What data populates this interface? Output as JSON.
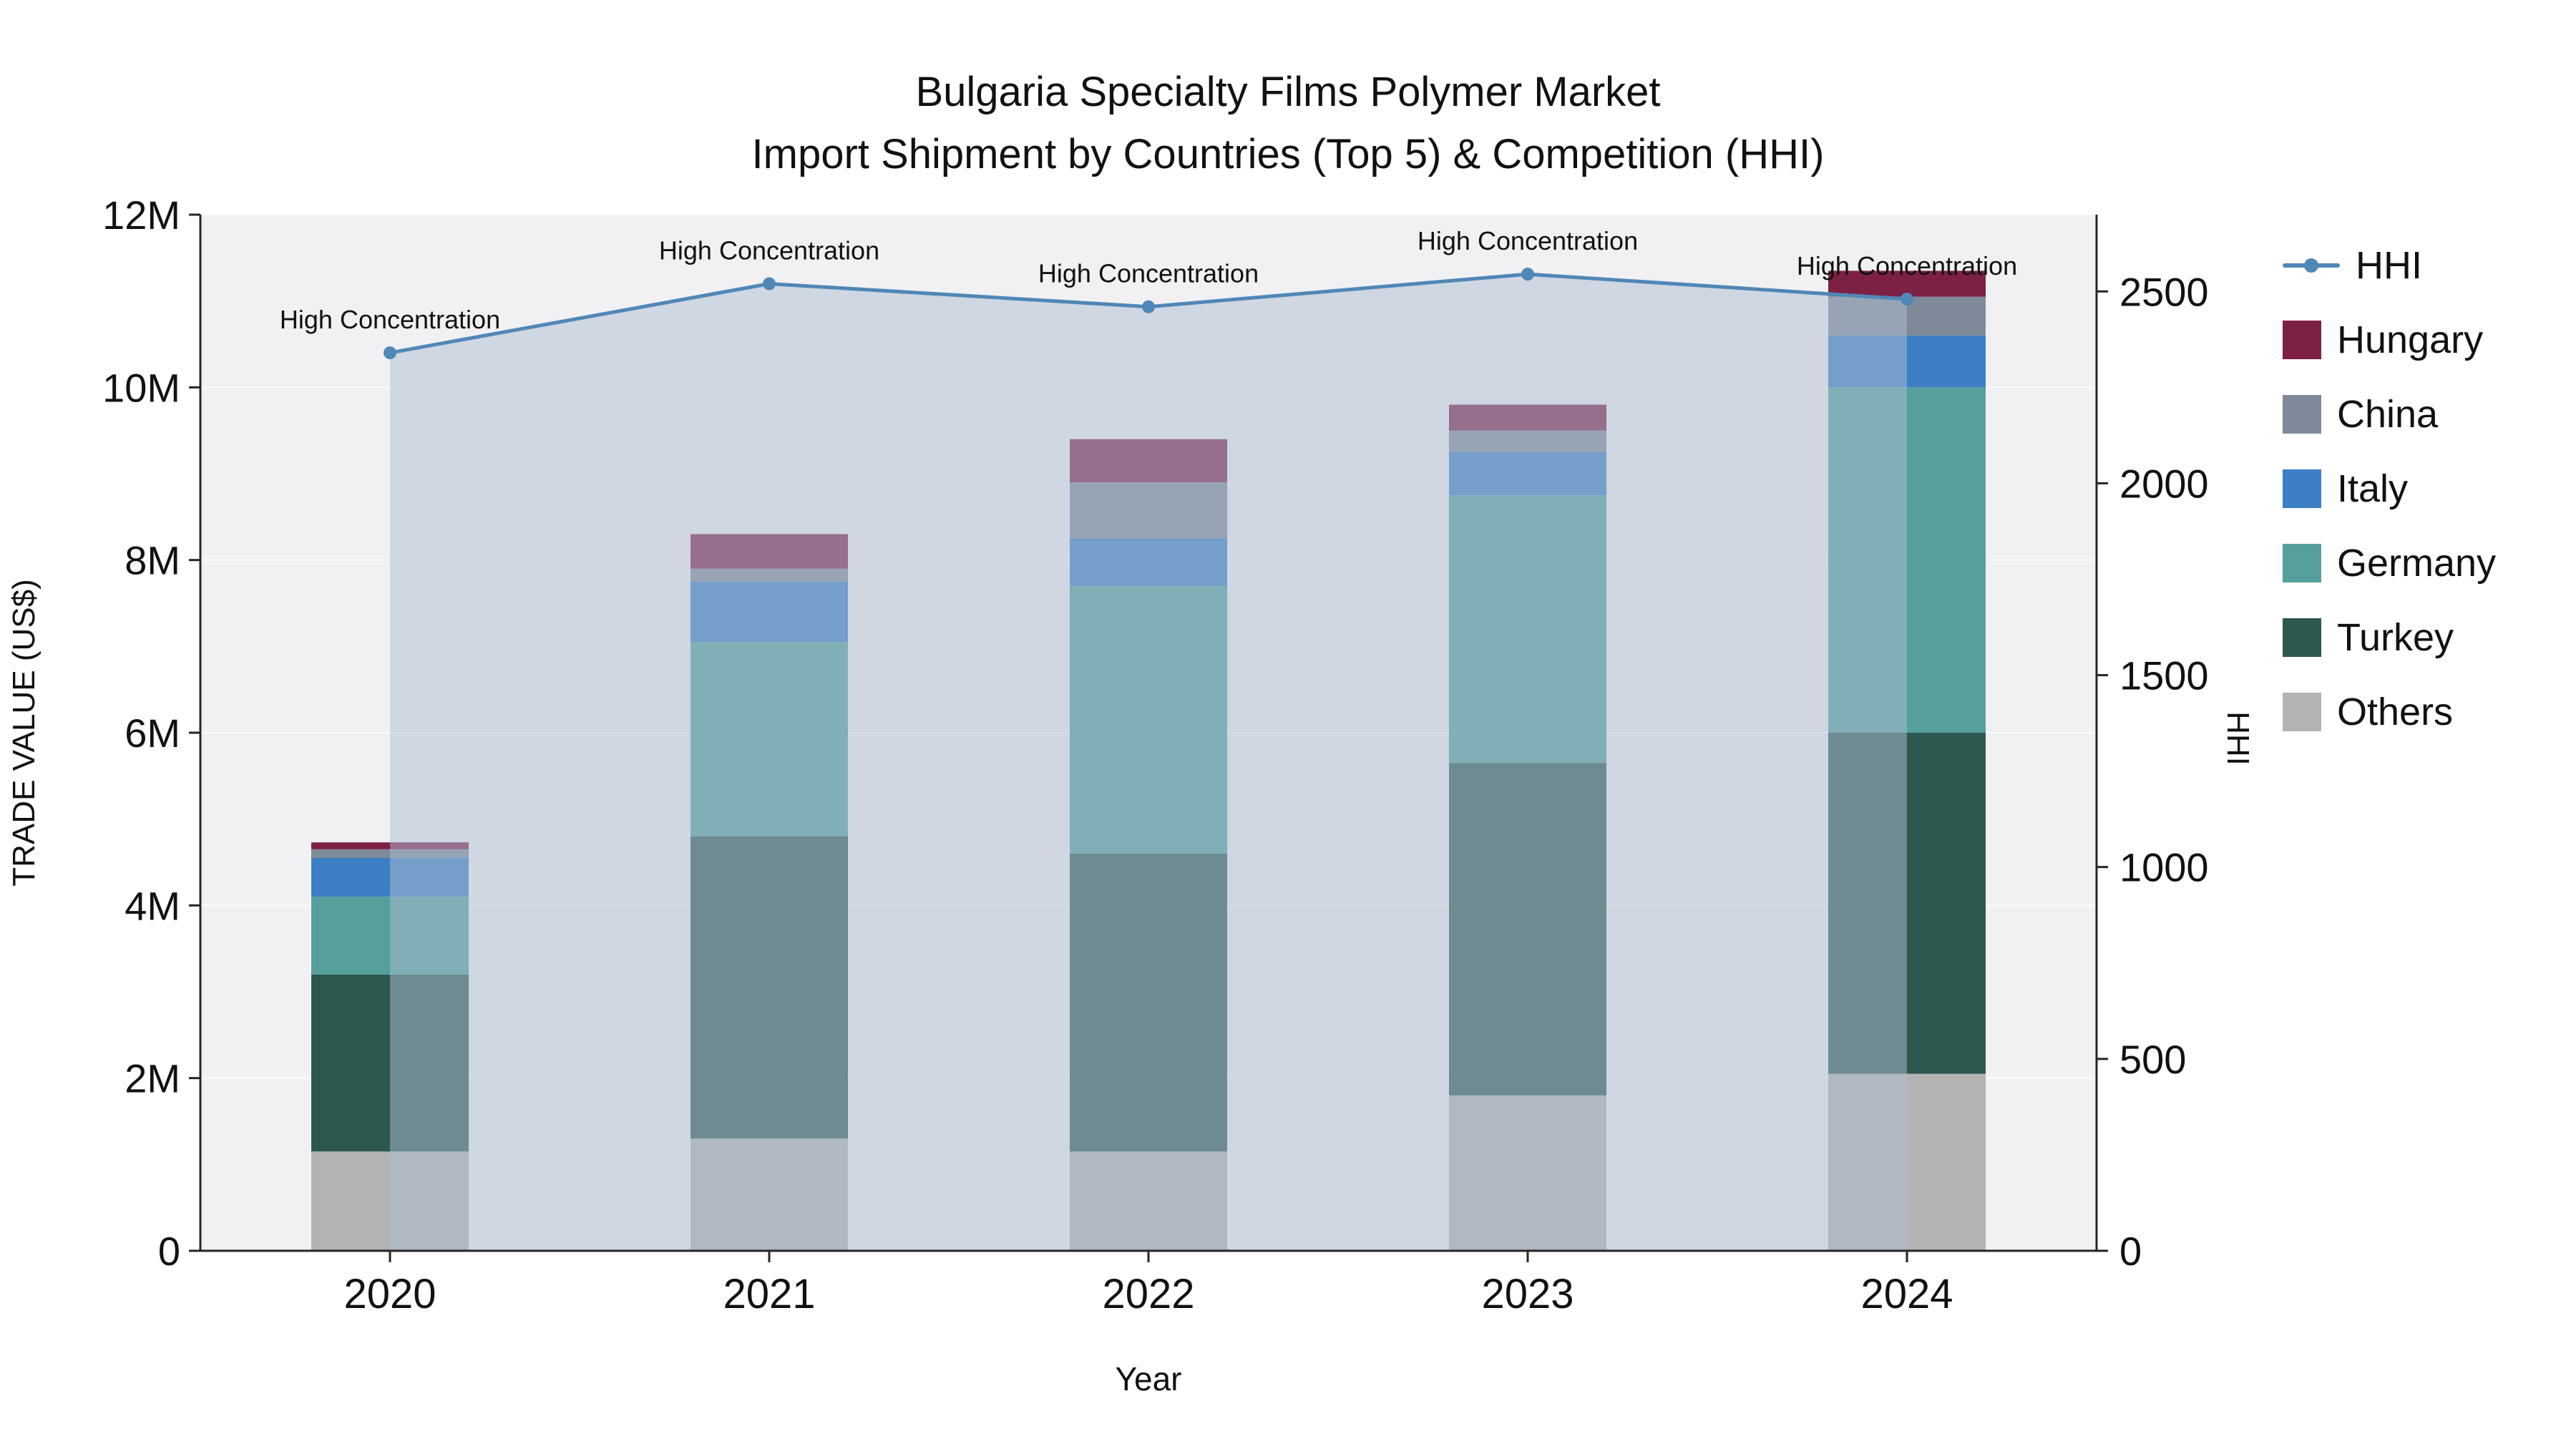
{
  "chart_data": {
    "type": "bar",
    "stacked": true,
    "title": "Bulgaria Specialty Films Polymer Market",
    "subtitle": "Import Shipment by Countries (Top 5) & Competition (HHI)",
    "xlabel": "Year",
    "ylabel_left": "TRADE VALUE (US$)",
    "ylabel_right": "HHI",
    "unit": "US$ millions",
    "categories": [
      "2020",
      "2021",
      "2022",
      "2023",
      "2024"
    ],
    "series": [
      {
        "name": "Others",
        "color": "#b3b3b3",
        "values": [
          1.15,
          1.3,
          1.15,
          1.8,
          2.05
        ]
      },
      {
        "name": "Turkey",
        "color": "#2c5850",
        "values": [
          2.05,
          3.5,
          3.45,
          3.85,
          3.95
        ]
      },
      {
        "name": "Germany",
        "color": "#55a09c",
        "values": [
          0.9,
          2.25,
          3.1,
          3.1,
          4.0
        ]
      },
      {
        "name": "Italy",
        "color": "#3c7fc4",
        "values": [
          0.45,
          0.7,
          0.55,
          0.5,
          0.6
        ]
      },
      {
        "name": "China",
        "color": "#7e8a9a",
        "values": [
          0.1,
          0.15,
          0.65,
          0.25,
          0.45
        ]
      },
      {
        "name": "Hungary",
        "color": "#7c2044",
        "values": [
          0.08,
          0.4,
          0.5,
          0.3,
          0.3
        ]
      }
    ],
    "hhi": {
      "name": "HHI",
      "color": "#4f87b7",
      "fill_color": "rgba(173,190,210,0.5)",
      "values": [
        2340,
        2520,
        2460,
        2545,
        2480
      ],
      "annotation": "High Concentration"
    },
    "left_axis": {
      "max": 12,
      "tick_values": [
        0,
        2,
        4,
        6,
        8,
        10,
        12
      ],
      "tick_labels": [
        "0",
        "2M",
        "4M",
        "6M",
        "8M",
        "10M",
        "12M"
      ]
    },
    "right_axis": {
      "max": 2700,
      "tick_values": [
        0,
        500,
        1000,
        1500,
        2000,
        2500
      ],
      "tick_labels": [
        "0",
        "500",
        "1000",
        "1500",
        "2000",
        "2500"
      ]
    },
    "colors": {
      "plot_bg": "#f1f1f3",
      "grid": "#fbfbfb",
      "axis": "#262626",
      "text": "#111111"
    },
    "legend": [
      {
        "label": "HHI",
        "type": "line",
        "color": "#4f87b7"
      },
      {
        "label": "Hungary",
        "type": "patch",
        "color": "#7c2044"
      },
      {
        "label": "China",
        "type": "patch",
        "color": "#7e8a9a"
      },
      {
        "label": "Italy",
        "type": "patch",
        "color": "#3c7fc4"
      },
      {
        "label": "Germany",
        "type": "patch",
        "color": "#55a09c"
      },
      {
        "label": "Turkey",
        "type": "patch",
        "color": "#2c5850"
      },
      {
        "label": "Others",
        "type": "patch",
        "color": "#b3b3b3"
      }
    ]
  }
}
